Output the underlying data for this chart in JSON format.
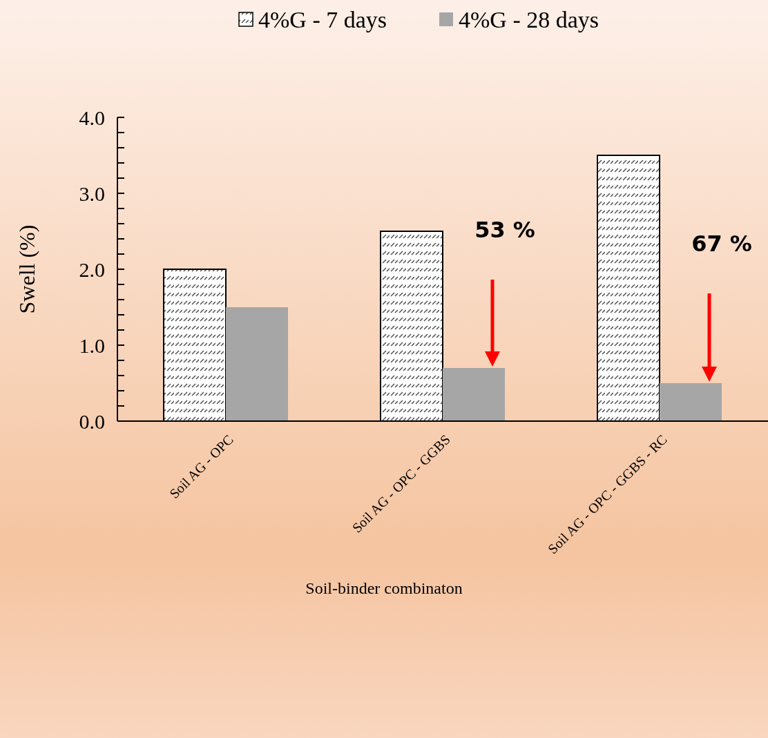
{
  "chart_data": {
    "type": "bar",
    "xlabel": "Soil-binder combinaton",
    "ylabel": "Swell (%)",
    "categories": [
      "Soil AG - OPC",
      "Soil AG - OPC - GGBS",
      "Soil AG - OPC - GGBS - RC"
    ],
    "series": [
      {
        "name": "4%G - 7 days",
        "color": "#000000",
        "values": [
          2.0,
          2.5,
          3.5
        ]
      },
      {
        "name": "4%G - 28 days",
        "color": "#a6a6a6",
        "values": [
          1.5,
          0.7,
          0.5
        ]
      }
    ],
    "ylim": [
      0,
      4
    ],
    "yticks": [
      {
        "value": 0,
        "label": "0.0"
      },
      {
        "value": 0.2,
        "label": null
      },
      {
        "value": 0.4,
        "label": null
      },
      {
        "value": 0.6,
        "label": null
      },
      {
        "value": 0.8,
        "label": null
      },
      {
        "value": 1,
        "label": "1.0"
      },
      {
        "value": 1.2,
        "label": null
      },
      {
        "value": 1.4,
        "label": null
      },
      {
        "value": 1.6,
        "label": null
      },
      {
        "value": 1.8,
        "label": null
      },
      {
        "value": 2,
        "label": "2.0"
      },
      {
        "value": 2.2,
        "label": null
      },
      {
        "value": 2.4,
        "label": null
      },
      {
        "value": 2.6,
        "label": null
      },
      {
        "value": 2.8,
        "label": null
      },
      {
        "value": 3,
        "label": "3.0"
      },
      {
        "value": 3.2,
        "label": null
      },
      {
        "value": 3.4,
        "label": null
      },
      {
        "value": 3.6,
        "label": null
      },
      {
        "value": 3.8,
        "label": null
      },
      {
        "value": 4,
        "label": "4.0"
      }
    ],
    "annotations": [
      "53 %",
      "67 %"
    ],
    "legend": "top",
    "grid": false
  }
}
